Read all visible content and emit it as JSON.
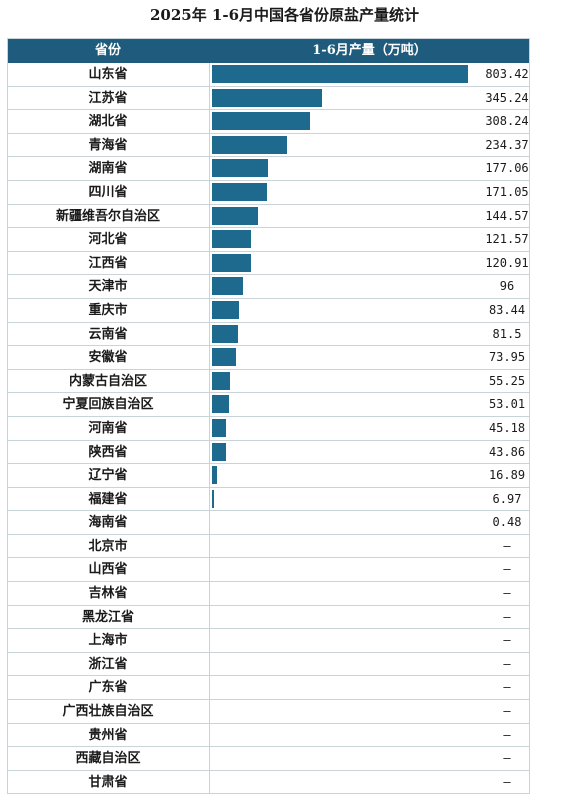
{
  "title": "2025年 1-6月中国各省份原盐产量统计",
  "header": {
    "province": "省份",
    "value": "1-6月产量（万吨）"
  },
  "chart_data": {
    "type": "table",
    "title": "2025年 1-6月中国各省份原盐产量统计",
    "columns": [
      "省份",
      "1-6月产量（万吨）"
    ],
    "rows": [
      {
        "province": "山东省",
        "value": 803.42,
        "label": "803.42"
      },
      {
        "province": "江苏省",
        "value": 345.24,
        "label": "345.24"
      },
      {
        "province": "湖北省",
        "value": 308.24,
        "label": "308.24"
      },
      {
        "province": "青海省",
        "value": 234.37,
        "label": "234.37"
      },
      {
        "province": "湖南省",
        "value": 177.06,
        "label": "177.06"
      },
      {
        "province": "四川省",
        "value": 171.05,
        "label": "171.05"
      },
      {
        "province": "新疆维吾尔自治区",
        "value": 144.57,
        "label": "144.57"
      },
      {
        "province": "河北省",
        "value": 121.57,
        "label": "121.57"
      },
      {
        "province": "江西省",
        "value": 120.91,
        "label": "120.91"
      },
      {
        "province": "天津市",
        "value": 96,
        "label": "96"
      },
      {
        "province": "重庆市",
        "value": 83.44,
        "label": "83.44"
      },
      {
        "province": "云南省",
        "value": 81.5,
        "label": "81.5"
      },
      {
        "province": "安徽省",
        "value": 73.95,
        "label": "73.95"
      },
      {
        "province": "内蒙古自治区",
        "value": 55.25,
        "label": "55.25"
      },
      {
        "province": "宁夏回族自治区",
        "value": 53.01,
        "label": "53.01"
      },
      {
        "province": "河南省",
        "value": 45.18,
        "label": "45.18"
      },
      {
        "province": "陕西省",
        "value": 43.86,
        "label": "43.86"
      },
      {
        "province": "辽宁省",
        "value": 16.89,
        "label": "16.89"
      },
      {
        "province": "福建省",
        "value": 6.97,
        "label": "6.97"
      },
      {
        "province": "海南省",
        "value": 0.48,
        "label": "0.48"
      },
      {
        "province": "北京市",
        "value": null,
        "label": "–"
      },
      {
        "province": "山西省",
        "value": null,
        "label": "–"
      },
      {
        "province": "吉林省",
        "value": null,
        "label": "–"
      },
      {
        "province": "黑龙江省",
        "value": null,
        "label": "–"
      },
      {
        "province": "上海市",
        "value": null,
        "label": "–"
      },
      {
        "province": "浙江省",
        "value": null,
        "label": "–"
      },
      {
        "province": "广东省",
        "value": null,
        "label": "–"
      },
      {
        "province": "广西壮族自治区",
        "value": null,
        "label": "–"
      },
      {
        "province": "贵州省",
        "value": null,
        "label": "–"
      },
      {
        "province": "西藏自治区",
        "value": null,
        "label": "–"
      },
      {
        "province": "甘肃省",
        "value": null,
        "label": "–"
      }
    ],
    "max_value": 803.42,
    "bar_color": "#1e6a8f",
    "header_color": "#1e5b7d"
  }
}
